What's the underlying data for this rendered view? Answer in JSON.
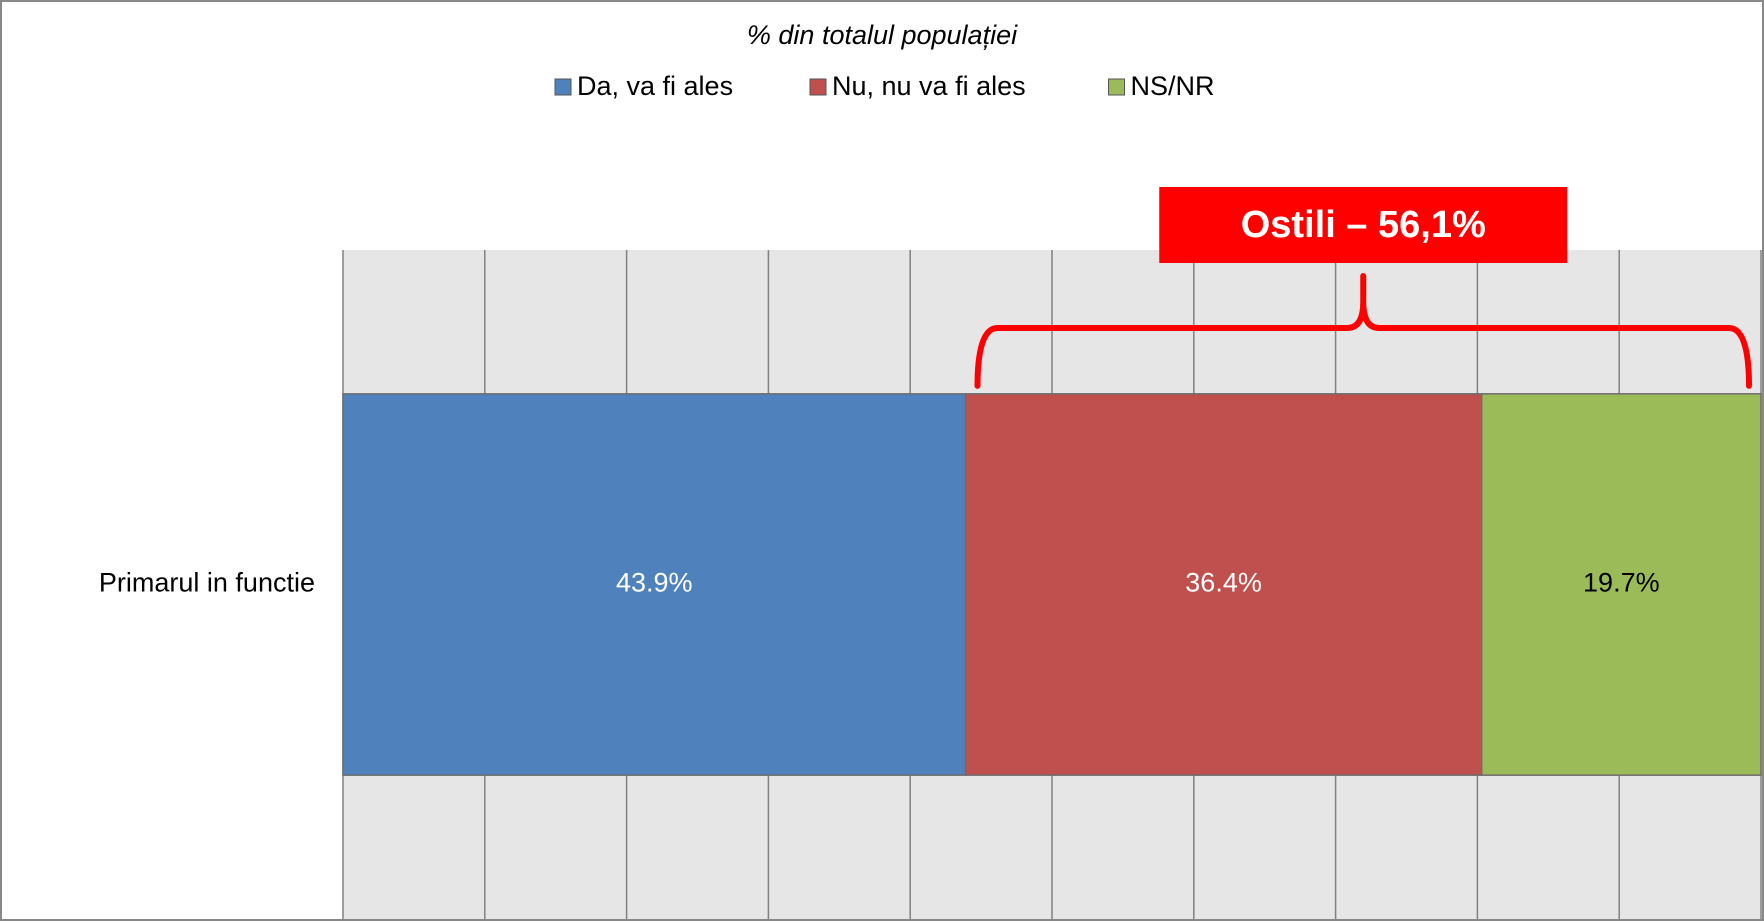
{
  "chart_data": {
    "type": "stacked_barh",
    "title": "% din totalul populației",
    "categories": [
      "Primarul in functie"
    ],
    "series": [
      {
        "name": "Da, va fi ales",
        "color": "#4f81bd",
        "values": [
          43.9
        ],
        "value_labels": [
          "43.9%"
        ]
      },
      {
        "name": "Nu, nu va fi ales",
        "color": "#c0504d",
        "values": [
          36.4
        ],
        "value_labels": [
          "36.4%"
        ]
      },
      {
        "name": "NS/NR",
        "color": "#9bbb59",
        "values": [
          19.7
        ],
        "value_labels": [
          "19.7%"
        ]
      }
    ],
    "annotation": "Ostili – 56,1%",
    "xlim": [
      0,
      100
    ],
    "xticks": [
      0,
      10,
      20,
      30,
      40,
      50,
      60,
      70,
      80,
      90,
      100
    ],
    "grid": true
  }
}
